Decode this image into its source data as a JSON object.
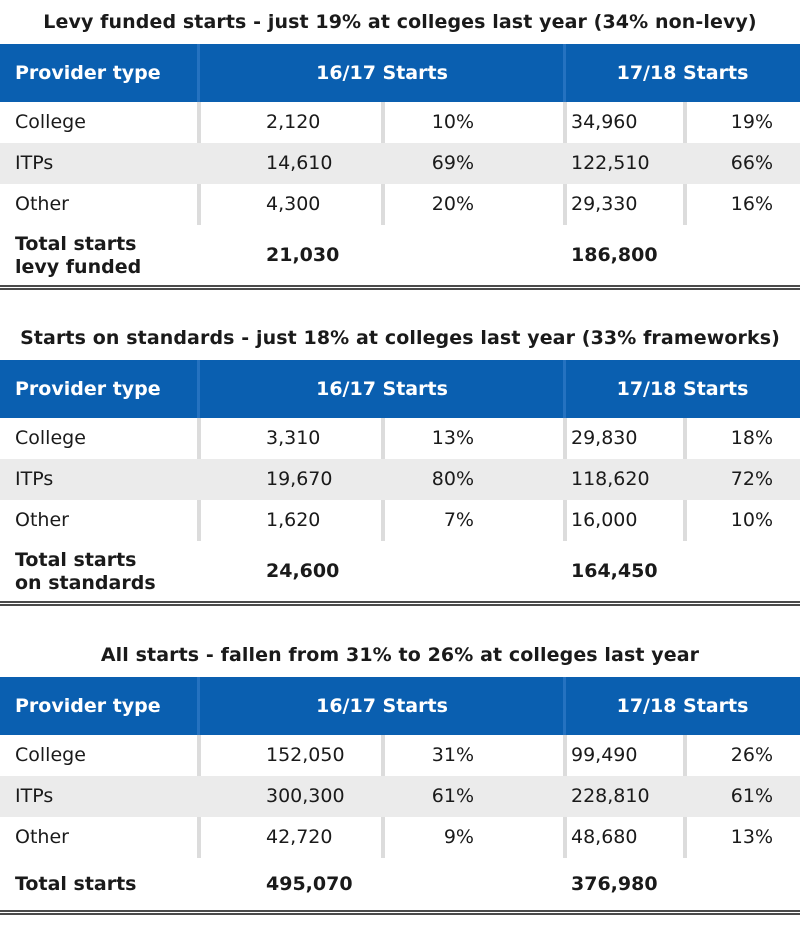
{
  "tables": [
    {
      "title": "Levy funded starts - just 19% at colleges last year (34% non-levy)",
      "headers": {
        "provider": "Provider type",
        "y1": "16/17 Starts",
        "y2": "17/18 Starts"
      },
      "rows": [
        {
          "provider": "College",
          "v1": "2,120",
          "p1": "10%",
          "v2": "34,960",
          "p2": "19%"
        },
        {
          "provider": "ITPs",
          "v1": "14,610",
          "p1": "69%",
          "v2": "122,510",
          "p2": "66%"
        },
        {
          "provider": "Other",
          "v1": "4,300",
          "p1": "20%",
          "v2": "29,330",
          "p2": "16%"
        }
      ],
      "total": {
        "label_line1": "Total starts",
        "label_line2": "levy funded",
        "v1": "21,030",
        "v2": "186,800"
      }
    },
    {
      "title": "Starts on standards - just 18% at colleges last year (33% frameworks)",
      "headers": {
        "provider": "Provider type",
        "y1": "16/17 Starts",
        "y2": "17/18 Starts"
      },
      "rows": [
        {
          "provider": "College",
          "v1": "3,310",
          "p1": "13%",
          "v2": "29,830",
          "p2": "18%"
        },
        {
          "provider": "ITPs",
          "v1": "19,670",
          "p1": "80%",
          "v2": "118,620",
          "p2": "72%"
        },
        {
          "provider": "Other",
          "v1": "1,620",
          "p1": "7%",
          "v2": "16,000",
          "p2": "10%"
        }
      ],
      "total": {
        "label_line1": "Total starts",
        "label_line2": "on standards",
        "v1": "24,600",
        "v2": "164,450"
      }
    },
    {
      "title": "All starts - fallen from 31% to 26% at colleges last year",
      "headers": {
        "provider": "Provider type",
        "y1": "16/17 Starts",
        "y2": "17/18 Starts"
      },
      "rows": [
        {
          "provider": "College",
          "v1": "152,050",
          "p1": "31%",
          "v2": "99,490",
          "p2": "26%"
        },
        {
          "provider": "ITPs",
          "v1": "300,300",
          "p1": "61%",
          "v2": "228,810",
          "p2": "61%"
        },
        {
          "provider": "Other",
          "v1": "42,720",
          "p1": "9%",
          "v2": "48,680",
          "p2": "13%"
        }
      ],
      "total": {
        "label_line1": "Total starts",
        "label_line2": "",
        "v1": "495,070",
        "v2": "376,980"
      }
    }
  ]
}
